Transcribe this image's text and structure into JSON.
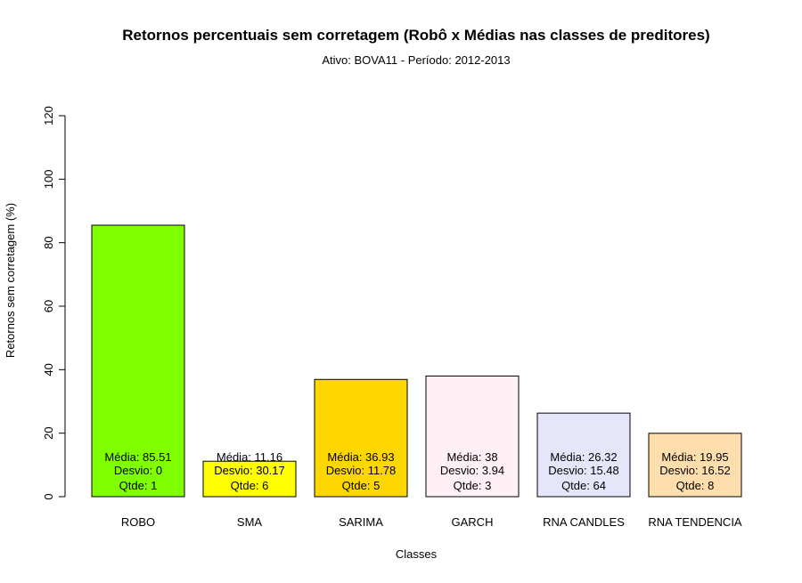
{
  "chart_data": {
    "type": "bar",
    "title": "Retornos percentuais sem corretagem (Robô x Médias nas classes de preditores)",
    "subtitle": "Ativo:  BOVA11  - Período: 2012-2013",
    "xlabel": "Classes",
    "ylabel": "Retornos sem corretagem (%)",
    "ylim": [
      0,
      120
    ],
    "yticks": [
      0,
      20,
      40,
      60,
      80,
      100,
      120
    ],
    "grid": false,
    "categories": [
      "ROBO",
      "SMA",
      "SARIMA",
      "GARCH",
      "RNA CANDLES",
      "RNA TENDENCIA"
    ],
    "values": [
      85.51,
      11.16,
      36.93,
      38,
      26.32,
      19.95
    ],
    "colors": [
      "#7fff00",
      "#ffff00",
      "#ffd700",
      "#fff0f5",
      "#e6e6fa",
      "#ffdead"
    ],
    "bar_labels": [
      [
        "Média: 85.51",
        "Desvio: 0",
        "Qtde: 1"
      ],
      [
        "Média: 11.16",
        "Desvio: 30.17",
        "Qtde: 6"
      ],
      [
        "Média: 36.93",
        "Desvio: 11.78",
        "Qtde: 5"
      ],
      [
        "Média: 38",
        "Desvio: 3.94",
        "Qtde: 3"
      ],
      [
        "Média: 26.32",
        "Desvio: 15.48",
        "Qtde: 64"
      ],
      [
        "Média: 19.95",
        "Desvio: 16.52",
        "Qtde: 8"
      ]
    ]
  }
}
